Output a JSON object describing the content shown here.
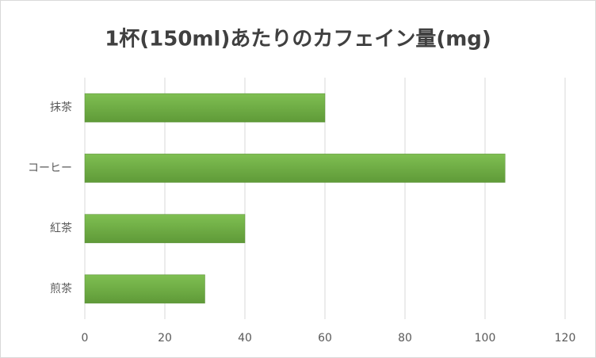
{
  "chart_data": {
    "type": "bar",
    "orientation": "horizontal",
    "title": "1杯(150ml)あたりのカフェイン量(mg)",
    "categories": [
      "抹茶",
      "コーヒー",
      "紅茶",
      "煎茶"
    ],
    "values": [
      60,
      105,
      40,
      30
    ],
    "color": "#70ad47",
    "xlim": [
      0,
      120
    ],
    "xticks": [
      0,
      20,
      40,
      60,
      80,
      100,
      120
    ],
    "grid": true
  }
}
